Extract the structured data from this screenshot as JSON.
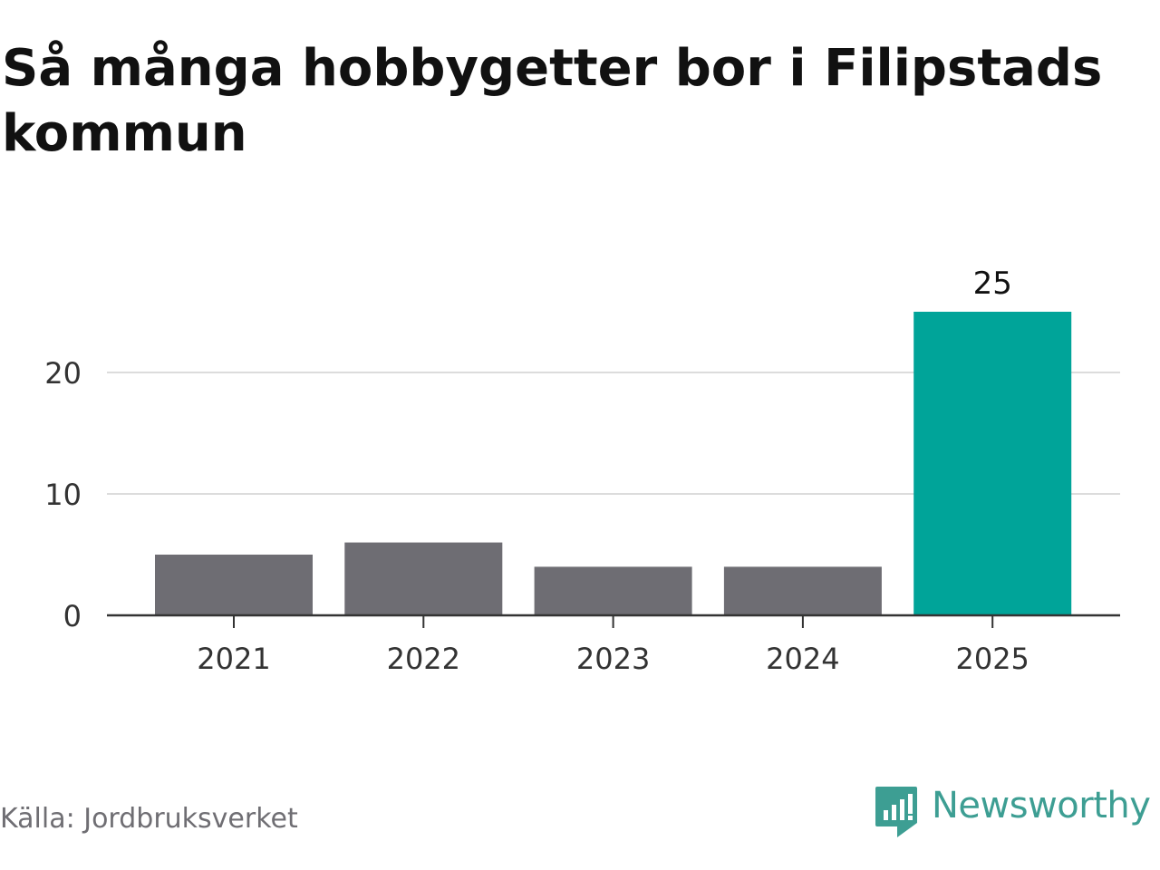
{
  "title": "Så många hobbygetter bor i Filipstads kommun",
  "source": "Källa: Jordbruksverket",
  "brand": {
    "name": "Newsworthy",
    "icon": "newsworthy-logo-icon",
    "color": "#3d9e93"
  },
  "chart_data": {
    "type": "bar",
    "title": "Så många hobbygetter bor i Filipstads kommun",
    "categories": [
      "2021",
      "2022",
      "2023",
      "2024",
      "2025"
    ],
    "values": [
      5,
      6,
      4,
      4,
      25
    ],
    "data_labels": [
      null,
      null,
      null,
      null,
      "25"
    ],
    "highlight_index": 4,
    "bar_color": "#6e6d73",
    "highlight_color": "#00a499",
    "yticks": [
      "0",
      "10",
      "20"
    ],
    "ylim": [
      0,
      25
    ],
    "grid": true,
    "legend": "none",
    "xlabel": "",
    "ylabel": ""
  }
}
